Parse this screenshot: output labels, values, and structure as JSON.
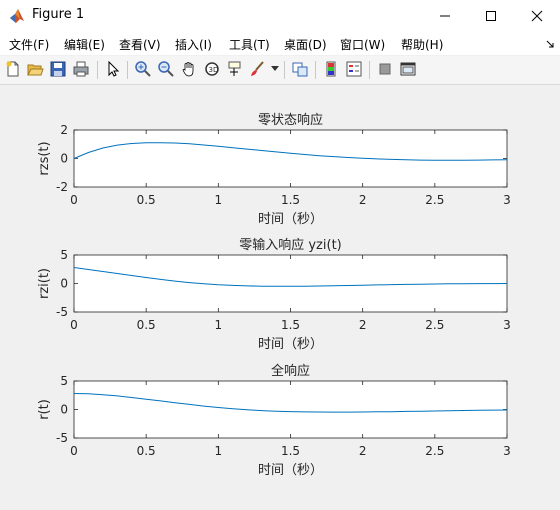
{
  "window": {
    "title": "Figure 1",
    "icon": "matlab-logo-icon"
  },
  "menu": [
    {
      "label": "文件(F)"
    },
    {
      "label": "编辑(E)"
    },
    {
      "label": "查看(V)"
    },
    {
      "label": "插入(I)"
    },
    {
      "label": "工具(T)"
    },
    {
      "label": "桌面(D)"
    },
    {
      "label": "窗口(W)"
    },
    {
      "label": "帮助(H)"
    }
  ],
  "toolbar_icons": [
    "new-figure-icon",
    "open-file-icon",
    "save-icon",
    "print-icon",
    "pointer-icon",
    "zoom-in-icon",
    "zoom-out-icon",
    "pan-hand-icon",
    "rotate-3d-icon",
    "data-cursor-icon",
    "brush-icon",
    "link-plot-icon",
    "colorbar-icon",
    "legend-icon",
    "hide-plot-tools-icon",
    "show-plot-tools-icon"
  ],
  "colors": {
    "line": "#0072bd",
    "axes_bg": "#ffffff",
    "figure_bg": "#f0f0f0"
  },
  "chart_data": [
    {
      "type": "line",
      "title": "零状态响应",
      "xlabel": "时间（秒）",
      "ylabel": "rzs(t)",
      "xlim": [
        0,
        3
      ],
      "ylim": [
        -2,
        2
      ],
      "xticks": [
        "0",
        "0.5",
        "1",
        "1.5",
        "2",
        "2.5",
        "3"
      ],
      "yticks": [
        "2",
        "0",
        "-2"
      ],
      "x": [
        0,
        0.1,
        0.2,
        0.3,
        0.4,
        0.5,
        0.6,
        0.7,
        0.8,
        0.9,
        1.0,
        1.1,
        1.2,
        1.3,
        1.4,
        1.5,
        1.6,
        1.7,
        1.8,
        1.9,
        2.0,
        2.1,
        2.2,
        2.3,
        2.4,
        2.5,
        2.6,
        2.7,
        2.8,
        2.9,
        3.0
      ],
      "y": [
        0.0,
        0.42,
        0.74,
        0.94,
        1.05,
        1.1,
        1.11,
        1.09,
        1.03,
        0.95,
        0.86,
        0.76,
        0.66,
        0.56,
        0.46,
        0.37,
        0.28,
        0.2,
        0.13,
        0.07,
        0.02,
        -0.03,
        -0.06,
        -0.09,
        -0.11,
        -0.12,
        -0.12,
        -0.12,
        -0.11,
        -0.1,
        -0.09
      ]
    },
    {
      "type": "line",
      "title": "零输入响应 yzi(t)",
      "xlabel": "时间（秒）",
      "ylabel": "rzi(t)",
      "xlim": [
        0,
        3
      ],
      "ylim": [
        -5,
        5
      ],
      "xticks": [
        "0",
        "0.5",
        "1",
        "1.5",
        "2",
        "2.5",
        "3"
      ],
      "yticks": [
        "5",
        "0",
        "-5"
      ],
      "x": [
        0,
        0.1,
        0.2,
        0.3,
        0.4,
        0.5,
        0.6,
        0.7,
        0.8,
        0.9,
        1.0,
        1.1,
        1.2,
        1.3,
        1.4,
        1.5,
        1.6,
        1.7,
        1.8,
        1.9,
        2.0,
        2.1,
        2.2,
        2.3,
        2.4,
        2.5,
        2.6,
        2.7,
        2.8,
        2.9,
        3.0
      ],
      "y": [
        2.8,
        2.45,
        2.1,
        1.75,
        1.4,
        1.05,
        0.72,
        0.42,
        0.15,
        -0.05,
        -0.22,
        -0.34,
        -0.42,
        -0.47,
        -0.49,
        -0.49,
        -0.47,
        -0.44,
        -0.4,
        -0.35,
        -0.3,
        -0.25,
        -0.2,
        -0.16,
        -0.12,
        -0.09,
        -0.06,
        -0.04,
        -0.02,
        -0.01,
        0.0
      ]
    },
    {
      "type": "line",
      "title": "全响应",
      "xlabel": "时间（秒）",
      "ylabel": "r(t)",
      "xlim": [
        0,
        3
      ],
      "ylim": [
        -5,
        5
      ],
      "xticks": [
        "0",
        "0.5",
        "1",
        "1.5",
        "2",
        "2.5",
        "3"
      ],
      "yticks": [
        "5",
        "0",
        "-5"
      ],
      "x": [
        0,
        0.1,
        0.2,
        0.3,
        0.4,
        0.5,
        0.6,
        0.7,
        0.8,
        0.9,
        1.0,
        1.1,
        1.2,
        1.3,
        1.4,
        1.5,
        1.6,
        1.7,
        1.8,
        1.9,
        2.0,
        2.1,
        2.2,
        2.3,
        2.4,
        2.5,
        2.6,
        2.7,
        2.8,
        2.9,
        3.0
      ],
      "y": [
        2.8,
        2.75,
        2.6,
        2.38,
        2.1,
        1.8,
        1.5,
        1.2,
        0.9,
        0.6,
        0.35,
        0.12,
        -0.06,
        -0.2,
        -0.3,
        -0.37,
        -0.42,
        -0.44,
        -0.45,
        -0.45,
        -0.43,
        -0.41,
        -0.38,
        -0.34,
        -0.3,
        -0.26,
        -0.22,
        -0.18,
        -0.14,
        -0.11,
        -0.08
      ]
    }
  ]
}
